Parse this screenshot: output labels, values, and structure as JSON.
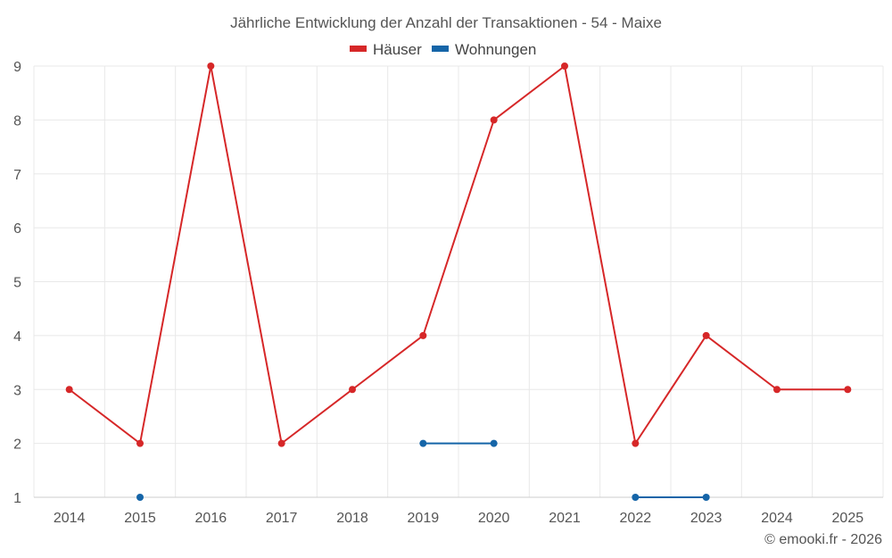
{
  "chart_data": {
    "type": "line",
    "title": "Jährliche Entwicklung der Anzahl der Transaktionen - 54 - Maixe",
    "categories": [
      "2014",
      "2015",
      "2016",
      "2017",
      "2018",
      "2019",
      "2020",
      "2021",
      "2022",
      "2023",
      "2024",
      "2025"
    ],
    "series": [
      {
        "name": "Häuser",
        "color": "#d62728",
        "values": [
          3,
          2,
          9,
          2,
          3,
          4,
          8,
          9,
          2,
          4,
          3,
          3
        ]
      },
      {
        "name": "Wohnungen",
        "color": "#1565a8",
        "values": [
          null,
          1,
          null,
          null,
          null,
          2,
          2,
          null,
          1,
          1,
          null,
          null
        ]
      }
    ],
    "ylim": [
      1,
      9
    ],
    "yticks": [
      1,
      2,
      3,
      4,
      5,
      6,
      7,
      8,
      9
    ],
    "grid": true,
    "legend": "top-center",
    "xlabel": "",
    "ylabel": ""
  },
  "credit": "© emooki.fr - 2026"
}
